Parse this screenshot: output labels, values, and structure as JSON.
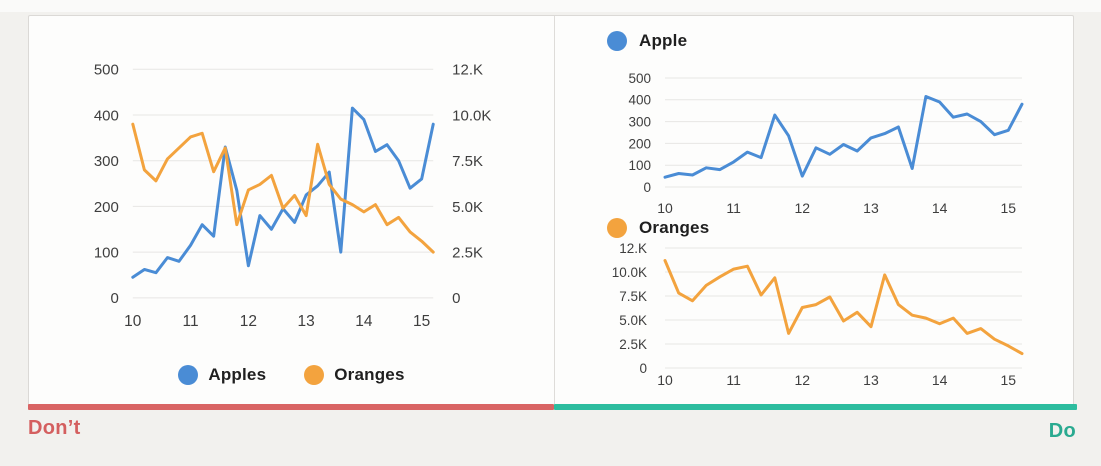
{
  "page": {
    "dont_label": "Don’t",
    "do_label": "Do"
  },
  "colors": {
    "page_bg": "#f2f1ee",
    "top_strip": "#fafaf9",
    "panel_bg": "#fdfdfc",
    "panel_border": "#dbd9d6",
    "grid": "#e7e6e4",
    "axis_text": "#3e3e3e",
    "legend_text": "#1f1f1f",
    "apples": "#4a8cd5",
    "oranges": "#f3a33e",
    "dont_bar": "#d96464",
    "do_bar": "#2dbd9f",
    "dont_text": "#d45f5f",
    "do_text": "#2aaa90"
  },
  "chart_data": [
    {
      "id": "dont",
      "type": "line",
      "title": "",
      "x_range": [
        10,
        15.2
      ],
      "x_ticks": [
        "10",
        "11",
        "12",
        "13",
        "14",
        "15"
      ],
      "grid": true,
      "legend_position": "bottom",
      "y_axis_left": {
        "labels": [
          "500",
          "400",
          "300",
          "200",
          "100",
          "0"
        ],
        "max": 500,
        "min": 0
      },
      "y_axis_right": {
        "labels": [
          "12.K",
          "10.0K",
          "7.5K",
          "5.0K",
          "2.5K",
          "0"
        ],
        "max": 12.5,
        "min": 0,
        "unit": "K"
      },
      "series": [
        {
          "name": "Apples",
          "axis": "left",
          "color": "#4a8cd5",
          "values": [
            45,
            62,
            55,
            88,
            80,
            115,
            160,
            135,
            330,
            235,
            70,
            180,
            150,
            195,
            165,
            225,
            245,
            275,
            100,
            415,
            390,
            320,
            335,
            300,
            240,
            260,
            380
          ]
        },
        {
          "name": "Oranges",
          "axis": "right",
          "color": "#f3a33e",
          "values": [
            9.5,
            7.0,
            6.4,
            7.6,
            8.2,
            8.8,
            9.0,
            6.9,
            8.2,
            4.0,
            5.9,
            6.2,
            6.7,
            4.9,
            5.6,
            4.5,
            8.4,
            6.2,
            5.4,
            5.1,
            4.7,
            5.1,
            4.0,
            4.4,
            3.6,
            3.1,
            2.5
          ]
        }
      ]
    },
    {
      "id": "apple",
      "type": "line",
      "title": "Apple",
      "x_range": [
        10,
        15.2
      ],
      "x_ticks": [
        "10",
        "11",
        "12",
        "13",
        "14",
        "15"
      ],
      "grid": true,
      "legend_position": "top",
      "y_axis_left": {
        "labels": [
          "500",
          "400",
          "300",
          "200",
          "100",
          "0"
        ],
        "max": 500,
        "min": 0
      },
      "series": [
        {
          "name": "Apple",
          "axis": "left",
          "color": "#4a8cd5",
          "values": [
            45,
            62,
            55,
            88,
            80,
            115,
            160,
            135,
            330,
            235,
            50,
            180,
            150,
            195,
            165,
            225,
            245,
            275,
            85,
            415,
            390,
            320,
            335,
            300,
            240,
            260,
            380
          ]
        }
      ]
    },
    {
      "id": "oranges",
      "type": "line",
      "title": "Oranges",
      "x_range": [
        10,
        15.2
      ],
      "x_ticks": [
        "10",
        "11",
        "12",
        "13",
        "14",
        "15"
      ],
      "grid": true,
      "legend_position": "top",
      "y_axis_left": {
        "labels": [
          "12.K",
          "10.0K",
          "7.5K",
          "5.0K",
          "2.5K",
          "0"
        ],
        "max": 12.5,
        "min": 0,
        "unit": "K"
      },
      "series": [
        {
          "name": "Oranges",
          "axis": "left",
          "color": "#f3a33e",
          "values": [
            11.2,
            7.8,
            7.0,
            8.6,
            9.5,
            10.3,
            10.6,
            7.6,
            9.4,
            3.6,
            6.3,
            6.6,
            7.4,
            4.9,
            5.8,
            4.3,
            9.7,
            6.6,
            5.5,
            5.2,
            4.6,
            5.2,
            3.6,
            4.1,
            3.0,
            2.3,
            1.5
          ]
        }
      ]
    }
  ]
}
